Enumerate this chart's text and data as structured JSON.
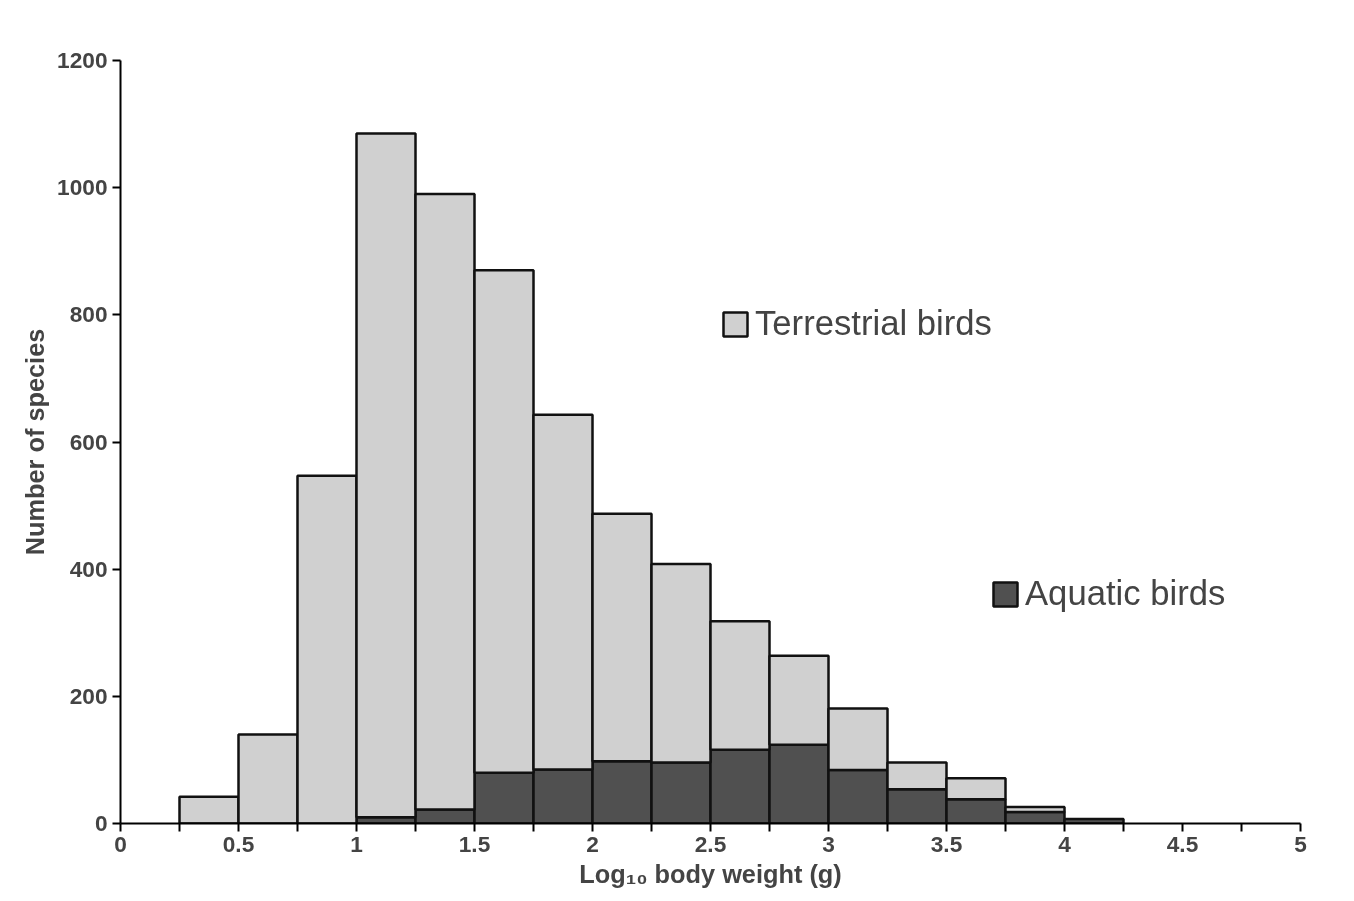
{
  "chart_data": {
    "type": "bar",
    "xlabel": "Log₁₀ body weight (g)",
    "ylabel": "Number of species",
    "x": [
      0.375,
      0.625,
      0.875,
      1.125,
      1.375,
      1.625,
      1.875,
      2.125,
      2.375,
      2.625,
      2.875,
      3.125,
      3.375,
      3.625,
      3.875,
      4.125
    ],
    "stacked": true,
    "series": [
      {
        "name": "Aquatic birds",
        "color": "#505050",
        "values": [
          null,
          0,
          0,
          10,
          22,
          80,
          85,
          98,
          96,
          116,
          124,
          84,
          54,
          38,
          18,
          7
        ]
      },
      {
        "name": "Terrestrial birds",
        "color": "#d0d0d0",
        "values": [
          42,
          140,
          547,
          1075,
          968,
          790,
          558,
          389,
          312,
          202,
          140,
          97,
          42,
          33,
          8,
          0
        ]
      }
    ],
    "xlim": [
      0,
      5
    ],
    "ylim": [
      0,
      1200
    ],
    "xticks": [
      0,
      {
        "value": 0.25,
        "label": null
      },
      0.5,
      {
        "value": 0.75,
        "label": null
      },
      1,
      {
        "value": 1.25,
        "label": null
      },
      1.5,
      {
        "value": 1.75,
        "label": null
      },
      2,
      {
        "value": 2.25,
        "label": null
      },
      2.5,
      {
        "value": 2.75,
        "label": null
      },
      3,
      {
        "value": 3.25,
        "label": null
      },
      3.5,
      {
        "value": 3.75,
        "label": null
      },
      4,
      {
        "value": 4.25,
        "label": null
      },
      4.5,
      {
        "value": 4.75,
        "label": null
      },
      5
    ],
    "yticks": [
      0,
      200,
      400,
      600,
      800,
      1000,
      1200
    ],
    "grid": false,
    "legend": "right"
  }
}
